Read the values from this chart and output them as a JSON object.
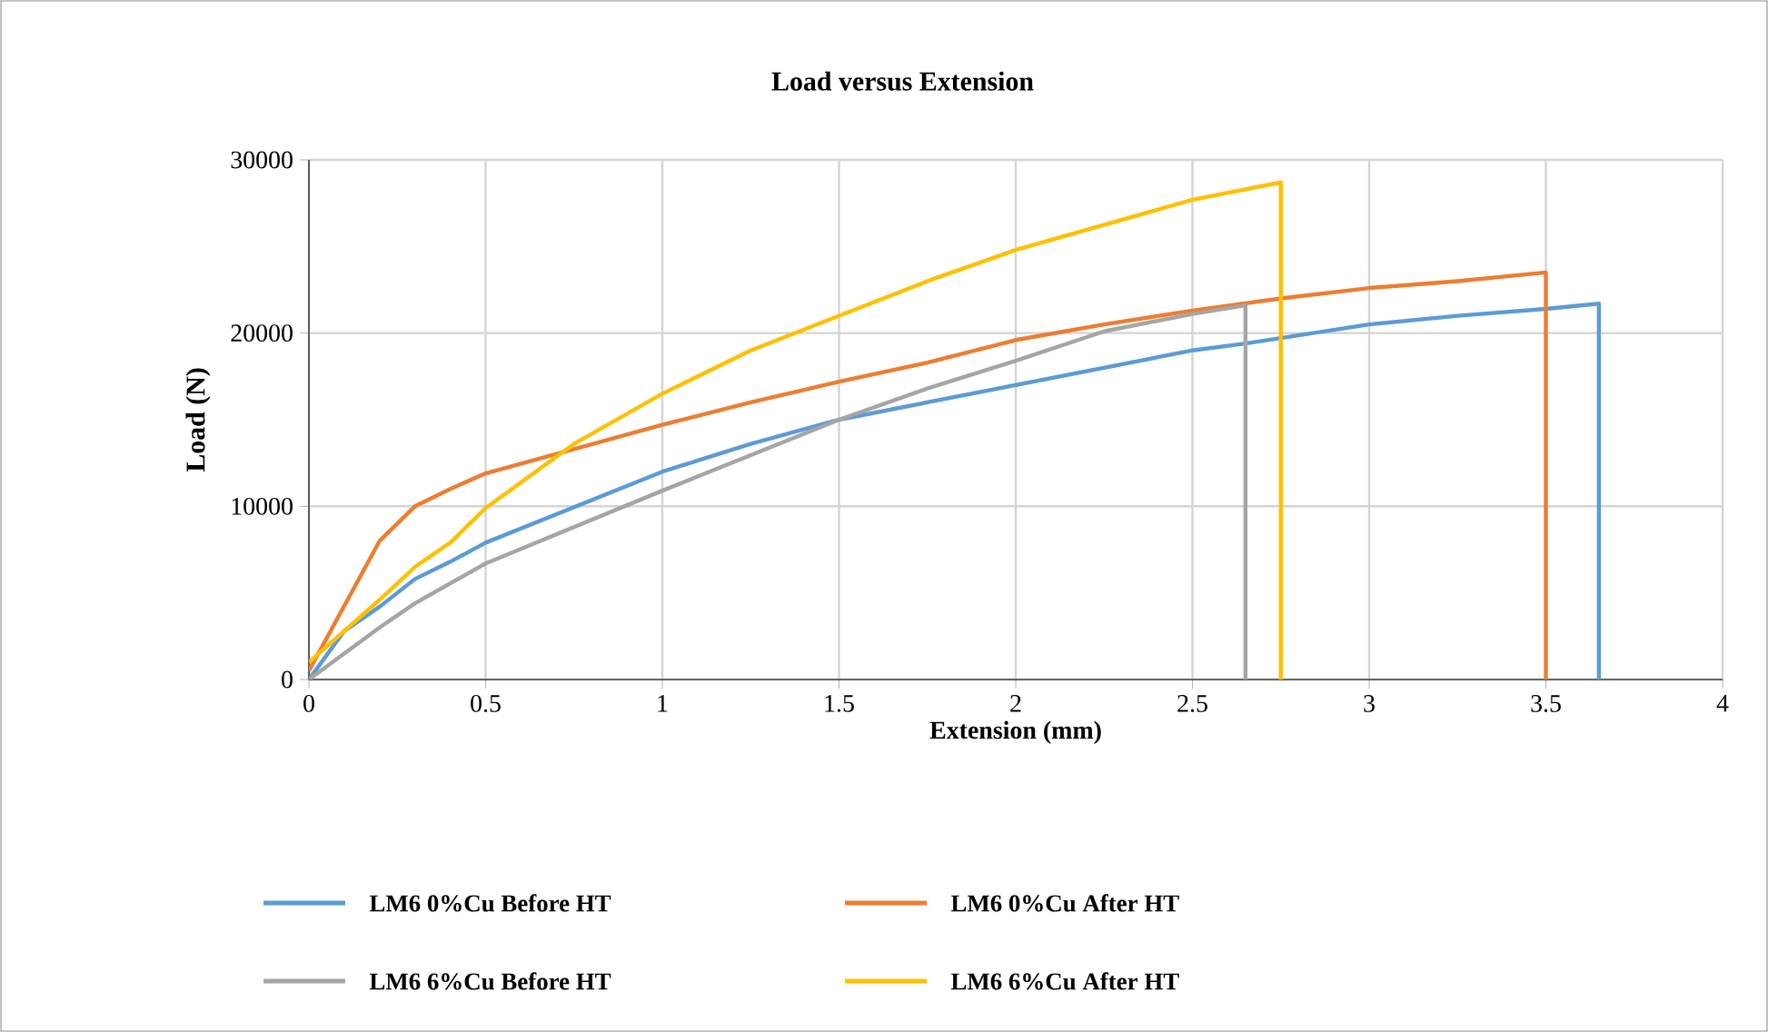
{
  "chart_data": {
    "type": "line",
    "title": "Load versus Extension",
    "xlabel": "Extension (mm)",
    "ylabel": "Load (N)",
    "xlim": [
      0,
      4
    ],
    "ylim": [
      0,
      30000
    ],
    "xticks": [
      0,
      0.5,
      1,
      1.5,
      2,
      2.5,
      3,
      3.5,
      4
    ],
    "yticks": [
      0,
      10000,
      20000,
      30000
    ],
    "grid": true,
    "legend": "bottom",
    "marker": "none",
    "line_style": "solid",
    "series": [
      {
        "name": "LM6 0%Cu Before HT",
        "color": "#5b9bd5",
        "x": [
          0,
          0.1,
          0.2,
          0.3,
          0.4,
          0.5,
          1,
          1.25,
          1.5,
          2,
          2.5,
          2.65,
          3,
          3.25,
          3.5,
          3.65,
          3.65
        ],
        "values": [
          0,
          2800,
          4200,
          5800,
          6800,
          7900,
          12000,
          13600,
          15000,
          17000,
          19000,
          19400,
          20500,
          21000,
          21400,
          21700,
          0
        ]
      },
      {
        "name": "LM6 0%Cu After HT",
        "color": "#ed7d31",
        "x": [
          0,
          0.2,
          0.3,
          0.4,
          0.5,
          0.75,
          1,
          1.25,
          1.5,
          1.75,
          2,
          2.25,
          2.5,
          2.75,
          3,
          3.25,
          3.5,
          3.5
        ],
        "values": [
          500,
          8000,
          10000,
          11000,
          11900,
          13300,
          14700,
          16000,
          17200,
          18300,
          19600,
          20500,
          21300,
          22000,
          22600,
          23000,
          23500,
          0
        ]
      },
      {
        "name": "LM6 6%Cu Before HT",
        "color": "#a5a5a5",
        "x": [
          0,
          0.2,
          0.3,
          0.5,
          1,
          1.5,
          1.75,
          2,
          2.25,
          2.5,
          2.65,
          2.65
        ],
        "values": [
          0,
          3000,
          4400,
          6700,
          10900,
          15000,
          16800,
          18400,
          20100,
          21100,
          21600,
          0
        ]
      },
      {
        "name": "LM6 6%Cu After HT",
        "color": "#ffc000",
        "x": [
          0,
          0.2,
          0.3,
          0.4,
          0.5,
          0.75,
          1,
          1.25,
          1.5,
          1.75,
          2,
          2.5,
          2.75,
          2.75
        ],
        "values": [
          1000,
          4600,
          6500,
          7900,
          9900,
          13600,
          16500,
          19000,
          21000,
          23000,
          24800,
          27700,
          28700,
          0
        ]
      }
    ]
  }
}
